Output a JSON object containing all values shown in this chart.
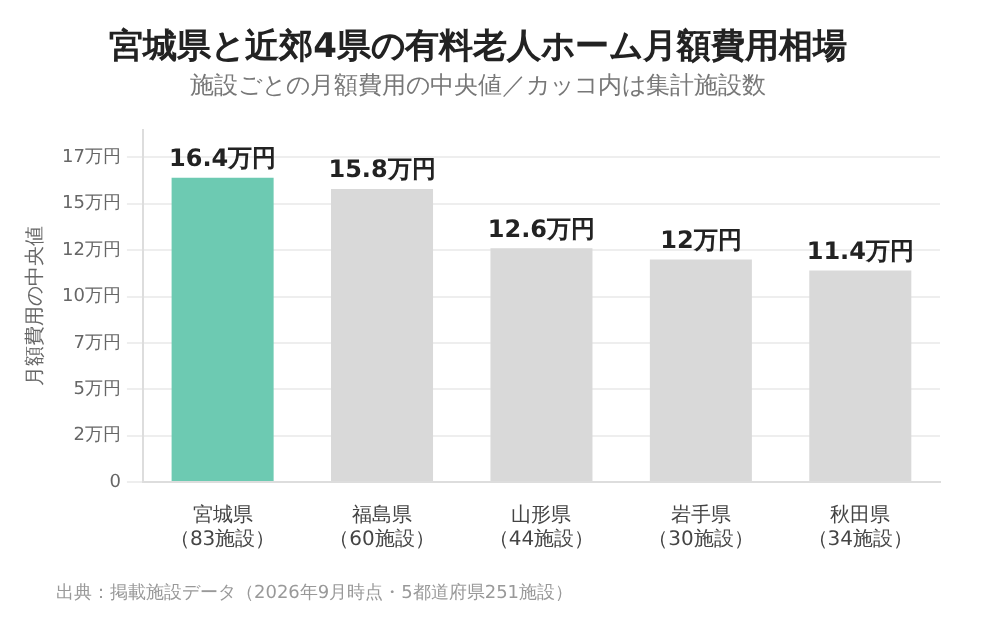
{
  "chart_data": {
    "type": "bar",
    "title": "宮城県と近郊4県の有料老人ホーム月額費用相場",
    "subtitle": "施設ごとの月額費用の中央値／カッコ内は集計施設数",
    "ylabel": "月額費用の中央値",
    "categories": [
      "宮城県（83施設）",
      "福島県（60施設）",
      "山形県（44施設）",
      "岩手県（30施設）",
      "秋田県（34施設）"
    ],
    "values": [
      16.4,
      15.8,
      12.6,
      12,
      11.4
    ],
    "colors": [
      "#6dcab2",
      "#d9d9d9",
      "#d9d9d9",
      "#d9d9d9",
      "#d9d9d9"
    ],
    "value_labels": [
      "16.4万円",
      "15.8万円",
      "12.6万円",
      "12万円",
      "11.4万円"
    ],
    "ylim": [
      0,
      19
    ],
    "yticks": [
      0,
      {
        "value": 2.5,
        "label": "2万円"
      },
      {
        "value": 5,
        "label": "5万円"
      },
      {
        "value": 7.5,
        "label": "7万円"
      },
      {
        "value": 10,
        "label": "10万円"
      },
      {
        "value": 12.5,
        "label": "12万円"
      },
      {
        "value": 15,
        "label": "15万円"
      },
      {
        "value": 17.5,
        "label": "17万円"
      }
    ],
    "grid": "y",
    "legend": false,
    "annotations": [
      "出典：掲載施設データ（2026年9月時点・5都道府県251施設）"
    ]
  }
}
